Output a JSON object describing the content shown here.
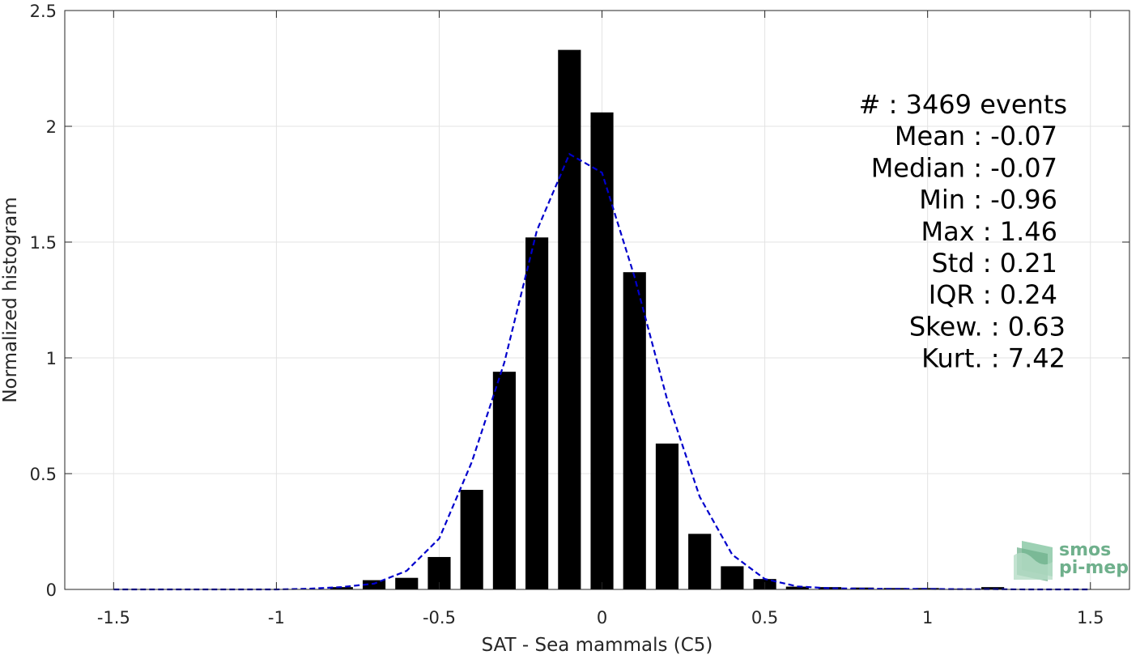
{
  "chart_data": {
    "type": "bar",
    "xlabel": "SAT - Sea mammals (C5)",
    "ylabel": "Normalized histogram",
    "xlim": [
      -1.65,
      1.62
    ],
    "ylim": [
      0,
      2.5
    ],
    "xticks": [
      -1.5,
      -1,
      -0.5,
      0,
      0.5,
      1,
      1.5
    ],
    "xtick_labels": [
      "-1.5",
      "-1",
      "-0.5",
      "0",
      "0.5",
      "1",
      "1.5"
    ],
    "yticks": [
      0,
      0.5,
      1,
      1.5,
      2,
      2.5
    ],
    "ytick_labels": [
      "0",
      "0.5",
      "1",
      "1.5",
      "2",
      "2.5"
    ],
    "grid": true,
    "bar_color": "#000000",
    "bar_width": 0.07,
    "bars": {
      "x": [
        -0.8,
        -0.7,
        -0.6,
        -0.5,
        -0.4,
        -0.3,
        -0.2,
        -0.1,
        0.0,
        0.1,
        0.2,
        0.3,
        0.4,
        0.5,
        0.6,
        0.7,
        0.8,
        0.9,
        1.0,
        1.1,
        1.2
      ],
      "values": [
        0.01,
        0.04,
        0.05,
        0.14,
        0.43,
        0.94,
        1.52,
        2.33,
        2.06,
        1.37,
        0.63,
        0.24,
        0.1,
        0.045,
        0.012,
        0.01,
        0.008,
        0.006,
        0.006,
        0.003,
        0.01
      ]
    },
    "fit_curve": {
      "style": "dashed",
      "color": "#0000cc",
      "x": [
        -1.5,
        -1.4,
        -1.3,
        -1.2,
        -1.1,
        -1.0,
        -0.9,
        -0.8,
        -0.7,
        -0.6,
        -0.5,
        -0.4,
        -0.3,
        -0.2,
        -0.1,
        0.0,
        0.1,
        0.2,
        0.3,
        0.4,
        0.5,
        0.6,
        0.7,
        0.8,
        0.9,
        1.0,
        1.1,
        1.2,
        1.3,
        1.4,
        1.5
      ],
      "y": [
        0,
        0,
        0,
        0,
        0,
        0,
        0.003,
        0.01,
        0.025,
        0.08,
        0.22,
        0.55,
        0.98,
        1.55,
        1.88,
        1.8,
        1.35,
        0.82,
        0.4,
        0.15,
        0.045,
        0.013,
        0.005,
        0.003,
        0.002,
        0.002,
        0.001,
        0.001,
        0,
        0,
        0
      ]
    },
    "stats": [
      "#  : 3469 events",
      "Mean : -0.07",
      "Median : -0.07",
      "Min : -0.96",
      "Max : 1.46",
      "Std : 0.21",
      "IQR : 0.24",
      "Skew. : 0.63",
      "Kurt. : 7.42"
    ]
  },
  "logo": {
    "line1": "smos",
    "line2": "pi-mep",
    "color": "#6fb08c"
  }
}
